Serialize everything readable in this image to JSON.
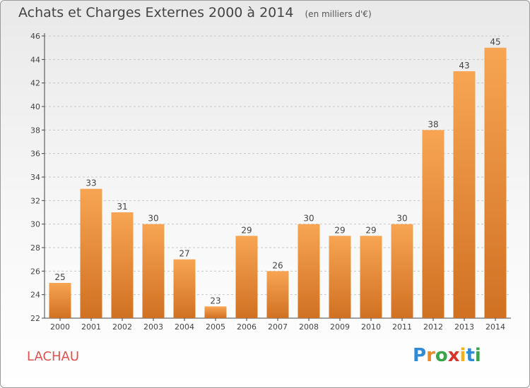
{
  "header": {
    "title": "Achats et Charges Externes 2000 à 2014",
    "subtitle": "(en milliers d'€)"
  },
  "footer": {
    "location": "LACHAU",
    "logo_letters": [
      "P",
      "r",
      "o",
      "x",
      "i",
      "t",
      "i"
    ],
    "logo_colors": [
      "#2e8bd6",
      "#e8892a",
      "#3aa548",
      "#d8352a",
      "#f0b21a",
      "#2e8bd6",
      "#3aa548"
    ]
  },
  "colors": {
    "bar_light": "#f7a553",
    "bar_dark": "#d07122",
    "axis": "#444444",
    "grid": "#c8c8c8"
  },
  "chart_data": {
    "type": "bar",
    "categories": [
      "2000",
      "2001",
      "2002",
      "2003",
      "2004",
      "2005",
      "2006",
      "2007",
      "2008",
      "2009",
      "2010",
      "2011",
      "2012",
      "2013",
      "2014"
    ],
    "values": [
      25,
      33,
      31,
      30,
      27,
      23,
      29,
      26,
      30,
      29,
      29,
      30,
      38,
      43,
      45
    ],
    "ylim": [
      22,
      46
    ],
    "yticks": [
      22,
      24,
      26,
      28,
      30,
      32,
      34,
      36,
      38,
      40,
      42,
      44,
      46
    ],
    "grid": "horizontal dashed"
  }
}
